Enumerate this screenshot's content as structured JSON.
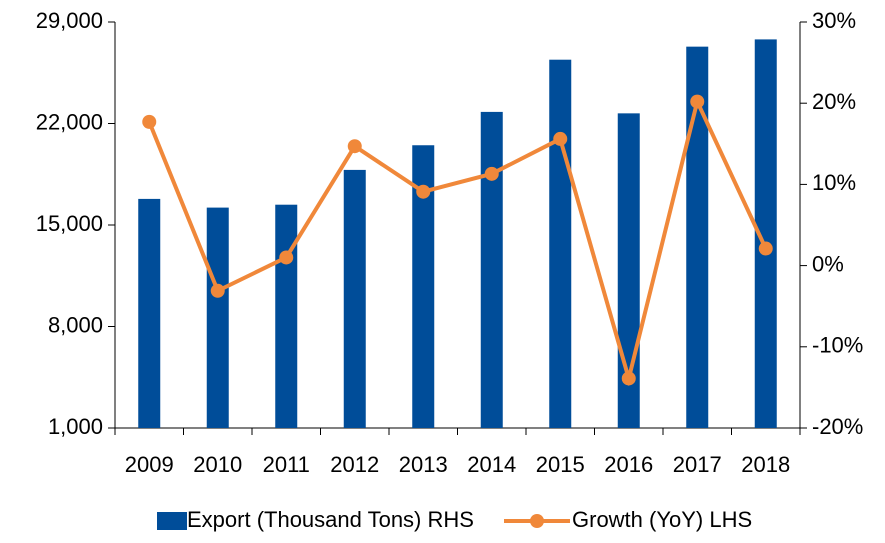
{
  "chart_data": {
    "type": "bar_line",
    "categories": [
      "2009",
      "2010",
      "2011",
      "2012",
      "2013",
      "2014",
      "2015",
      "2016",
      "2017",
      "2018"
    ],
    "series": [
      {
        "name": "Export (Thousand Tons) RHS",
        "type": "bar",
        "color": "#004d99",
        "axis": "y",
        "values": [
          16800,
          16200,
          16400,
          18800,
          20500,
          22800,
          26400,
          22700,
          27300,
          27800
        ]
      },
      {
        "name": "Growth (YoY) LHS",
        "type": "line",
        "color": "#f0883a",
        "axis": "y2",
        "values": [
          17.7,
          -3.1,
          1.0,
          14.7,
          9.1,
          11.3,
          15.6,
          -13.9,
          20.2,
          2.1
        ]
      }
    ],
    "ylim": [
      1000,
      29000
    ],
    "yticks": [
      {
        "value": 1000,
        "label": "1,000"
      },
      {
        "value": 8000,
        "label": "8,000"
      },
      {
        "value": 15000,
        "label": "15,000"
      },
      {
        "value": 22000,
        "label": "22,000"
      },
      {
        "value": 29000,
        "label": "29,000"
      }
    ],
    "y2lim": [
      -20,
      30
    ],
    "y2ticks": [
      {
        "value": -20,
        "label": "-20%"
      },
      {
        "value": -10,
        "label": "-10%"
      },
      {
        "value": 0,
        "label": "0%"
      },
      {
        "value": 10,
        "label": "10%"
      },
      {
        "value": 20,
        "label": "20%"
      },
      {
        "value": 30,
        "label": "30%"
      }
    ],
    "legend": "bottom"
  }
}
